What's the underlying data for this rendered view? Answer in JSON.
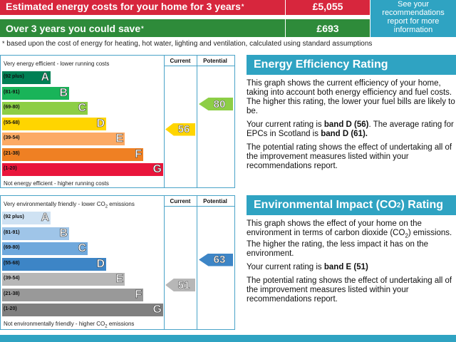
{
  "costs": {
    "estimated_label": "Estimated energy costs for your home for 3 years",
    "estimated_value": "£5,055",
    "save_label": "Over 3 years you could save",
    "save_value": "£693",
    "star": "*",
    "side_note": "See your recommendations report for more information",
    "footnote": "based upon the cost of energy for heating, hot water, lighting and ventilation, calculated using standard assumptions"
  },
  "energy_chart": {
    "top_label": "Very energy efficient - lower running costs",
    "bottom_label": "Not energy efficient - higher running costs",
    "col_current": "Current",
    "col_potential": "Potential",
    "bands": [
      {
        "range": "(92 plus)",
        "letter": "A",
        "color": "#008054"
      },
      {
        "range": "(81-91)",
        "letter": "B",
        "color": "#19b459"
      },
      {
        "range": "(69-80)",
        "letter": "C",
        "color": "#8dce46"
      },
      {
        "range": "(55-68)",
        "letter": "D",
        "color": "#ffd500"
      },
      {
        "range": "(39-54)",
        "letter": "E",
        "color": "#fcaa65"
      },
      {
        "range": "(21-38)",
        "letter": "F",
        "color": "#ef8023"
      },
      {
        "range": "(1-20)",
        "letter": "G",
        "color": "#e9153b"
      }
    ],
    "current": {
      "value": "56",
      "band": "D",
      "color": "#ffd500"
    },
    "potential": {
      "value": "80",
      "band": "C",
      "color": "#8dce46"
    }
  },
  "env_chart": {
    "top_label": "Very environmentally friendly - lower CO",
    "top_label_sub": "2",
    "top_label_end": " emissions",
    "bottom_label": "Not environmentally friendly - higher CO",
    "bottom_label_sub": "2",
    "bottom_label_end": " emissions",
    "col_current": "Current",
    "col_potential": "Potential",
    "bands": [
      {
        "range": "(92 plus)",
        "letter": "A",
        "color": "#cfe2f3"
      },
      {
        "range": "(81-91)",
        "letter": "B",
        "color": "#9fc5e8"
      },
      {
        "range": "(69-80)",
        "letter": "C",
        "color": "#6fa8dc"
      },
      {
        "range": "(55-68)",
        "letter": "D",
        "color": "#3d85c6"
      },
      {
        "range": "(39-54)",
        "letter": "E",
        "color": "#b7b7b7"
      },
      {
        "range": "(21-38)",
        "letter": "F",
        "color": "#999999"
      },
      {
        "range": "(1-20)",
        "letter": "G",
        "color": "#808080"
      }
    ],
    "current": {
      "value": "51",
      "band": "E",
      "color": "#b7b7b7"
    },
    "potential": {
      "value": "63",
      "band": "D",
      "color": "#3d85c6"
    }
  },
  "eer_panel": {
    "title": "Energy Efficiency Rating",
    "p1": "This graph shows the current efficiency of your home, taking into account both energy efficiency and fuel costs. The higher this rating, the lower your fuel bills are likely to be.",
    "p2a": "Your current rating is ",
    "p2b": "band D (56)",
    "p2c": ". The average rating for EPCs in Scotland is ",
    "p2d": "band D (61).",
    "p3": "The potential rating shows the effect of undertaking all of the improvement measures listed within your recommendations report."
  },
  "eir_panel": {
    "title_a": "Environmental Impact (CO",
    "title_sub": "2",
    "title_b": ") Rating",
    "p1a": "This graph shows the effect of your home on the environment in terms of carbon dioxide (CO",
    "p1sub": "2",
    "p1b": ") emissions. The higher the rating, the less impact it has on the environment.",
    "p2a": "Your current rating is ",
    "p2b": "band E (51)",
    "p3": "The potential rating shows the effect of undertaking all of the improvement measures listed within your recommendations report."
  }
}
